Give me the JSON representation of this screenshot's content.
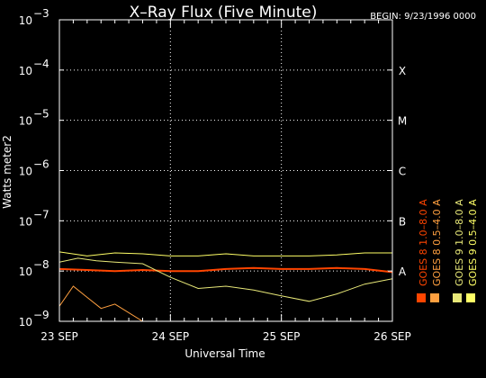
{
  "chart_data": {
    "type": "line",
    "title": "X–Ray Flux (Five Minute)",
    "subtitle": "BEGIN: 9/23/1996 0000",
    "xlabel": "Universal Time",
    "ylabel": "Watts meter2",
    "y_scale": "log",
    "ylim": [
      1e-09,
      0.001
    ],
    "xlim": [
      "1996-09-23T00:00",
      "1996-09-26T00:00"
    ],
    "x_ticks": [
      {
        "x": "1996-09-23T00:00",
        "label": "23 SEP"
      },
      {
        "x": "1996-09-24T00:00",
        "label": "24 SEP"
      },
      {
        "x": "1996-09-25T00:00",
        "label": "25 SEP"
      },
      {
        "x": "1996-09-26T00:00",
        "label": "26 SEP"
      }
    ],
    "y_ticks": [
      {
        "exp": -9,
        "base": "10",
        "sup": "−9"
      },
      {
        "exp": -8,
        "base": "10",
        "sup": "−8"
      },
      {
        "exp": -7,
        "base": "10",
        "sup": "−7"
      },
      {
        "exp": -6,
        "base": "10",
        "sup": "−6"
      },
      {
        "exp": -5,
        "base": "10",
        "sup": "−5"
      },
      {
        "exp": -4,
        "base": "10",
        "sup": "−4"
      },
      {
        "exp": -3,
        "base": "10",
        "sup": "−3"
      }
    ],
    "flare_classes": [
      {
        "label": "A",
        "exp": -8
      },
      {
        "label": "B",
        "exp": -7
      },
      {
        "label": "C",
        "exp": -6
      },
      {
        "label": "M",
        "exp": -5
      },
      {
        "label": "X",
        "exp": -4
      }
    ],
    "grid": {
      "horizontal_at_exp": [
        -8,
        -7,
        -6,
        -5,
        -4
      ],
      "vertical_at": [
        "1996-09-24T00:00",
        "1996-09-25T00:00"
      ]
    },
    "series": [
      {
        "name": "GOES 8 1.0–8.0 A",
        "color": "#ff4500",
        "x": [
          "1996-09-23T00:00",
          "1996-09-23T06:00",
          "1996-09-23T12:00",
          "1996-09-23T18:00",
          "1996-09-24T00:00",
          "1996-09-24T06:00",
          "1996-09-24T12:00",
          "1996-09-24T18:00",
          "1996-09-25T00:00",
          "1996-09-25T06:00",
          "1996-09-25T12:00",
          "1996-09-25T18:00",
          "1996-09-26T00:00"
        ],
        "y": [
          1.1e-08,
          1.05e-08,
          1e-08,
          1.05e-08,
          1e-08,
          1e-08,
          1.1e-08,
          1.15e-08,
          1.1e-08,
          1.1e-08,
          1.15e-08,
          1.1e-08,
          9.5e-09
        ]
      },
      {
        "name": "GOES 8 0.5–4.0 A",
        "color": "#ffa040",
        "x": [
          "1996-09-23T00:00",
          "1996-09-23T03:00",
          "1996-09-23T06:00",
          "1996-09-23T09:00",
          "1996-09-23T12:00",
          "1996-09-23T18:00",
          "1996-09-24T00:00",
          "1996-09-24T06:00",
          "1996-09-24T12:00",
          "1996-09-24T18:00",
          "1996-09-25T00:00",
          "1996-09-25T06:00",
          "1996-09-25T12:00",
          "1996-09-25T18:00",
          "1996-09-26T00:00"
        ],
        "y": [
          2e-09,
          5e-09,
          3e-09,
          1.8e-09,
          2.2e-09,
          1e-09,
          1e-09,
          1e-09,
          1e-09,
          1e-09,
          1e-09,
          1e-09,
          1e-09,
          1e-09,
          1e-09
        ]
      },
      {
        "name": "GOES 9 1.0–8.0 A",
        "color": "#e8e878",
        "x": [
          "1996-09-23T00:00",
          "1996-09-23T04:00",
          "1996-09-23T08:00",
          "1996-09-23T12:00",
          "1996-09-23T18:00",
          "1996-09-24T00:00",
          "1996-09-24T06:00",
          "1996-09-24T12:00",
          "1996-09-24T18:00",
          "1996-09-25T00:00",
          "1996-09-25T06:00",
          "1996-09-25T12:00",
          "1996-09-25T18:00",
          "1996-09-26T00:00"
        ],
        "y": [
          1.5e-08,
          1.8e-08,
          1.6e-08,
          1.5e-08,
          1.4e-08,
          7.5e-09,
          4.5e-09,
          5e-09,
          4.2e-09,
          3.2e-09,
          2.5e-09,
          3.5e-09,
          5.5e-09,
          7e-09
        ]
      },
      {
        "name": "GOES 9 0.5–4.0 A",
        "color": "#ffff66",
        "x": [
          "1996-09-23T00:00",
          "1996-09-23T06:00",
          "1996-09-23T12:00",
          "1996-09-23T18:00",
          "1996-09-24T00:00",
          "1996-09-24T06:00",
          "1996-09-24T12:00",
          "1996-09-24T18:00",
          "1996-09-25T00:00",
          "1996-09-25T06:00",
          "1996-09-25T12:00",
          "1996-09-25T18:00",
          "1996-09-26T00:00"
        ],
        "y": [
          2.4e-08,
          2e-08,
          2.3e-08,
          2.2e-08,
          2e-08,
          2e-08,
          2.2e-08,
          2e-08,
          2e-08,
          2e-08,
          2.1e-08,
          2.3e-08,
          2.3e-08
        ]
      }
    ],
    "legend_placement": "right"
  }
}
